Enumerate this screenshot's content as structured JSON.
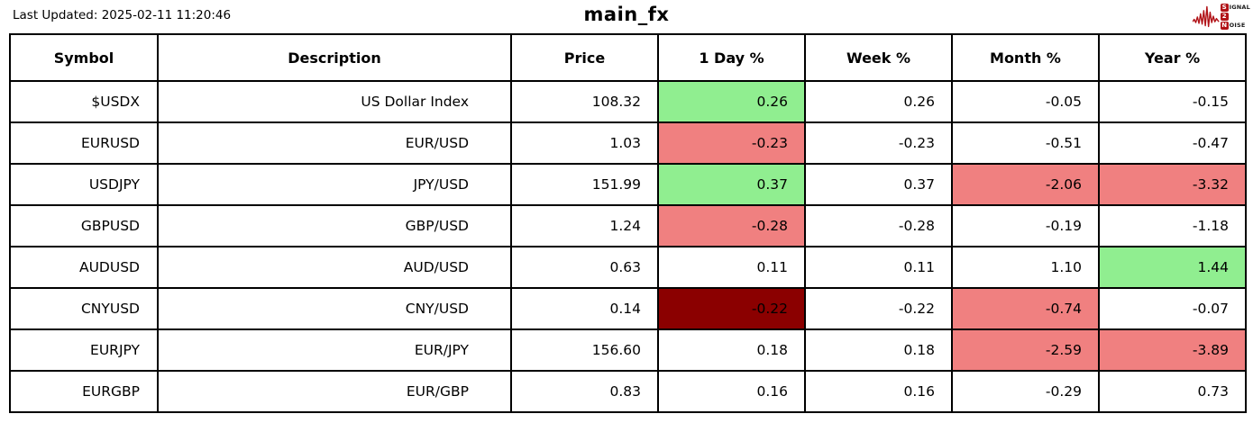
{
  "page": {
    "last_updated": "Last Updated: 2025-02-11 11:20:46",
    "title": "main_fx"
  },
  "logo": {
    "accent_color": "#b11217",
    "word1_initial": "S",
    "word1_rest": "IGNAL",
    "word2_initial": "2",
    "word3_initial": "N",
    "word3_rest": "OISE"
  },
  "colors": {
    "positive": "#90ee90",
    "negative": "#f08080",
    "strong_negative": "#8b0000"
  },
  "chart_data": {
    "type": "table",
    "title": "main_fx",
    "columns": [
      "Symbol",
      "Description",
      "Price",
      "1 Day %",
      "Week %",
      "Month %",
      "Year %"
    ],
    "rows": [
      {
        "symbol": "$USDX",
        "description": "US Dollar Index",
        "price": "108.32",
        "day": "0.26",
        "week": "0.26",
        "month": "-0.05",
        "year": "-0.15",
        "highlights": {
          "day": "positive"
        }
      },
      {
        "symbol": "EURUSD",
        "description": "EUR/USD",
        "price": "1.03",
        "day": "-0.23",
        "week": "-0.23",
        "month": "-0.51",
        "year": "-0.47",
        "highlights": {
          "day": "negative"
        }
      },
      {
        "symbol": "USDJPY",
        "description": "JPY/USD",
        "price": "151.99",
        "day": "0.37",
        "week": "0.37",
        "month": "-2.06",
        "year": "-3.32",
        "highlights": {
          "day": "positive",
          "month": "negative",
          "year": "negative"
        }
      },
      {
        "symbol": "GBPUSD",
        "description": "GBP/USD",
        "price": "1.24",
        "day": "-0.28",
        "week": "-0.28",
        "month": "-0.19",
        "year": "-1.18",
        "highlights": {
          "day": "negative"
        }
      },
      {
        "symbol": "AUDUSD",
        "description": "AUD/USD",
        "price": "0.63",
        "day": "0.11",
        "week": "0.11",
        "month": "1.10",
        "year": "1.44",
        "highlights": {
          "year": "positive"
        }
      },
      {
        "symbol": "CNYUSD",
        "description": "CNY/USD",
        "price": "0.14",
        "day": "-0.22",
        "week": "-0.22",
        "month": "-0.74",
        "year": "-0.07",
        "highlights": {
          "day": "strong_negative",
          "month": "negative"
        }
      },
      {
        "symbol": "EURJPY",
        "description": "EUR/JPY",
        "price": "156.60",
        "day": "0.18",
        "week": "0.18",
        "month": "-2.59",
        "year": "-3.89",
        "highlights": {
          "month": "negative",
          "year": "negative"
        }
      },
      {
        "symbol": "EURGBP",
        "description": "EUR/GBP",
        "price": "0.83",
        "day": "0.16",
        "week": "0.16",
        "month": "-0.29",
        "year": "0.73",
        "highlights": {}
      }
    ]
  }
}
